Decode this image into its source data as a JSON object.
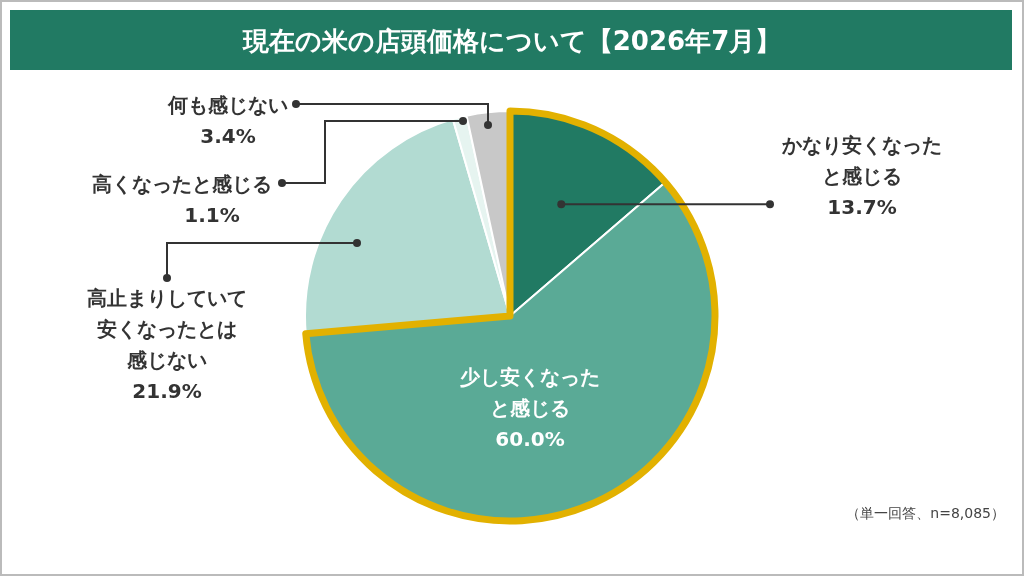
{
  "chart_data": {
    "type": "pie",
    "title": "現在の米の店頭価格について【2026年7月】",
    "categories": [
      "かなり安くなったと感じる",
      "少し安くなったと感じる",
      "高止まりしていて安くなったとは感じない",
      "高くなったと感じる",
      "何も感じない"
    ],
    "values": [
      13.7,
      60.0,
      21.9,
      1.1,
      3.4
    ],
    "value_labels": [
      "13.7%",
      "60.0%",
      "21.9%",
      "1.1%",
      "3.4%"
    ],
    "colors": [
      "#217a63",
      "#5aaa96",
      "#b2dbd2",
      "#e6f4f0",
      "#c8c8c8"
    ],
    "annotations": [
      "（単一回答、n=8,085）"
    ]
  }
}
